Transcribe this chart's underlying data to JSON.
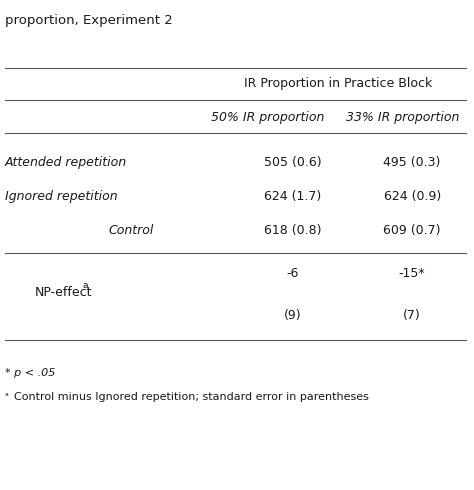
{
  "title": "proportion, Experiment 2",
  "header_main": "IR Proportion in Practice Block",
  "col1_header": "50% IR proportion",
  "col2_header": "33% IR proportion",
  "rows": [
    {
      "label": "Attended repetition",
      "val1": "505 (0.6)",
      "val2": "495 (0.3)"
    },
    {
      "label": "Ignored repetition",
      "val1": "624 (1.7)",
      "val2": "624 (0.9)"
    },
    {
      "label": "Control",
      "val1": "618 (0.8)",
      "val2": "609 (0.7)"
    }
  ],
  "np_label": "NP-effect",
  "np_superscript": "a",
  "np_val1_top": "-6",
  "np_val2_top": "-15*",
  "np_val1_bot": "(9)",
  "np_val2_bot": "(7)",
  "footnote1": "* p < .05",
  "footnote2": "a Control minus Ignored repetition; standard error in parentheses",
  "bg_color": "#ffffff",
  "text_color": "#1a1a1a",
  "line_color": "#555555",
  "title_fs": 9.5,
  "header_fs": 9.0,
  "cell_fs": 9.0,
  "footnote_fs": 8.0,
  "figw": 4.74,
  "figh": 4.9,
  "dpi": 100
}
